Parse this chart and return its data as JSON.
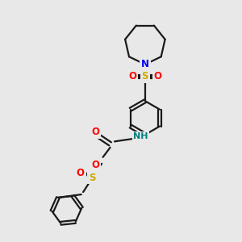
{
  "background_color": "#e8e8e8",
  "bond_color": "#1a1a1a",
  "N_color": "#0000ff",
  "O_color": "#ff0000",
  "S_color": "#ccaa00",
  "NH_color": "#008080",
  "figsize": [
    3.0,
    3.0
  ],
  "dpi": 100,
  "xlim": [
    0,
    10
  ],
  "ylim": [
    0,
    10
  ]
}
